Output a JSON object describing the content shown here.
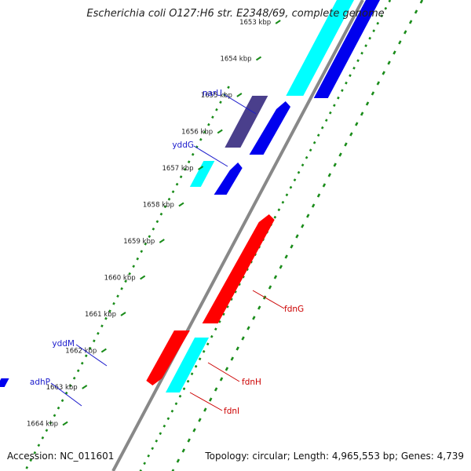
{
  "title": "Escherichia coli O127:H6 str. E2348/69, complete genome",
  "accession": "Accession: NC_011601",
  "topology": "Topology: circular; Length: 4,965,553 bp; Genes: 4,739",
  "ticks": [
    {
      "label": "1653 kbp",
      "kbp": 1653
    },
    {
      "label": "1654 kbp",
      "kbp": 1654
    },
    {
      "label": "1655 kbp",
      "kbp": 1655
    },
    {
      "label": "1656 kbp",
      "kbp": 1656
    },
    {
      "label": "1657 kbp",
      "kbp": 1657
    },
    {
      "label": "1658 kbp",
      "kbp": 1658
    },
    {
      "label": "1659 kbp",
      "kbp": 1659
    },
    {
      "label": "1660 kbp",
      "kbp": 1660
    },
    {
      "label": "1661 kbp",
      "kbp": 1661
    },
    {
      "label": "1662 kbp",
      "kbp": 1662
    },
    {
      "label": "1663 kbp",
      "kbp": 1663
    },
    {
      "label": "1664 kbp",
      "kbp": 1664
    }
  ],
  "gene_labels": [
    {
      "name": "narU",
      "color": "#1a1acc",
      "side": "outer"
    },
    {
      "name": "yddG",
      "color": "#1a1acc",
      "side": "outer"
    },
    {
      "name": "yddM",
      "color": "#1a1acc",
      "side": "outer"
    },
    {
      "name": "adhP",
      "color": "#1a1acc",
      "side": "outer"
    },
    {
      "name": "fdnG",
      "color": "#cc0000",
      "side": "inner"
    },
    {
      "name": "fdnH",
      "color": "#cc0000",
      "side": "inner"
    },
    {
      "name": "fdnI",
      "color": "#cc0000",
      "side": "inner"
    }
  ],
  "colors": {
    "cds_forward": "#0000ee",
    "cds_alt": "#00ffff",
    "gene_red": "#ff0000",
    "gene_purple": "#4a3f8c",
    "gene_gray": "#b8b8b8",
    "backbone": "#888888",
    "gc_dots": "#1a8c1a"
  }
}
